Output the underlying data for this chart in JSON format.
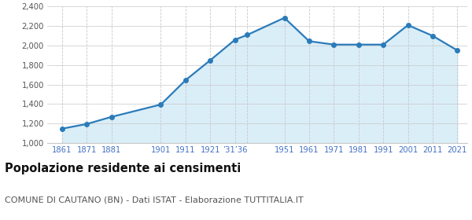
{
  "years": [
    1861,
    1871,
    1881,
    1901,
    1911,
    1921,
    1931,
    1936,
    1951,
    1961,
    1971,
    1981,
    1991,
    2001,
    2011,
    2021
  ],
  "population": [
    1147,
    1195,
    1268,
    1395,
    1645,
    1850,
    2060,
    2110,
    2285,
    2045,
    2010,
    2010,
    2010,
    2210,
    2100,
    1950
  ],
  "x_tick_positions": [
    1861,
    1871,
    1881,
    1901,
    1911,
    1921,
    1931,
    1936,
    1951,
    1961,
    1971,
    1981,
    1991,
    2001,
    2011,
    2021
  ],
  "x_tick_labels": [
    "1861",
    "1871",
    "1881",
    "1901",
    "1911",
    "1921",
    "’31’36",
    "",
    "1951",
    "1961",
    "1971",
    "1981",
    "1991",
    "2001",
    "2011",
    "2021"
  ],
  "ylim": [
    1000,
    2400
  ],
  "yticks": [
    1000,
    1200,
    1400,
    1600,
    1800,
    2000,
    2200,
    2400
  ],
  "xlim_left": 1855,
  "xlim_right": 2025,
  "line_color": "#2B7BBA",
  "fill_color": "#DAEEF8",
  "marker_color": "#2B7BBA",
  "grid_color": "#C8C8C8",
  "background_color": "#FFFFFF",
  "title": "Popolazione residente ai censimenti",
  "subtitle": "COMUNE DI CAUTANO (BN) - Dati ISTAT - Elaborazione TUTTITALIA.IT",
  "title_fontsize": 10.5,
  "subtitle_fontsize": 8
}
